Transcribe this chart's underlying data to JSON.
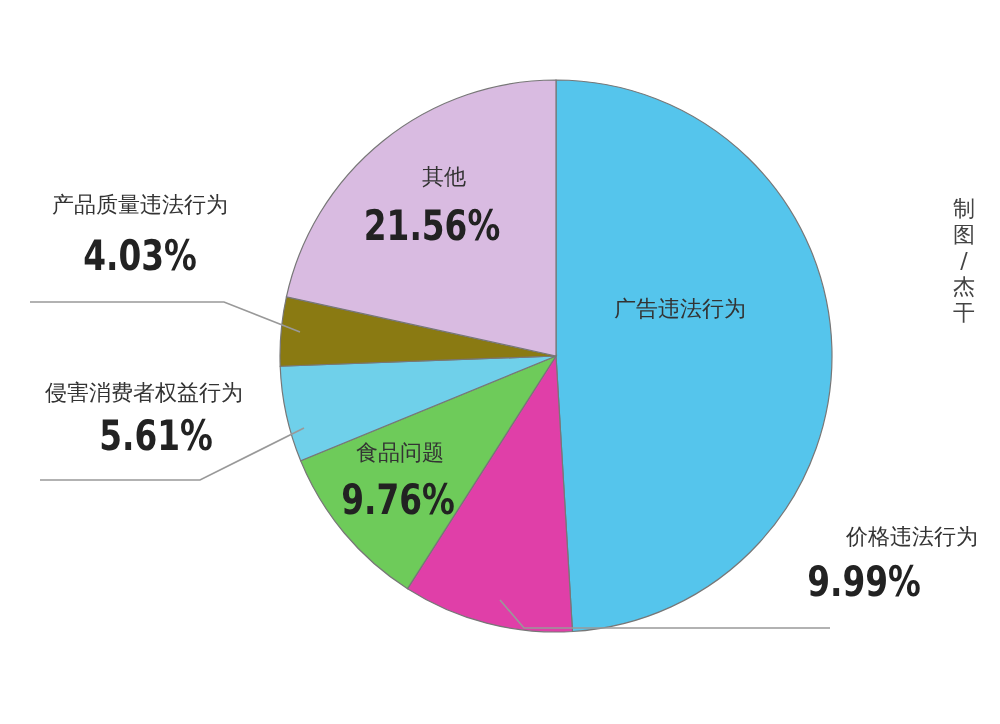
{
  "chart_data": {
    "type": "pie",
    "categories": [
      "广告违法行为",
      "价格违法行为",
      "食品问题",
      "侵害消费者权益行为",
      "产品质量违法行为",
      "其他"
    ],
    "values": [
      49.05,
      9.99,
      9.76,
      5.61,
      4.03,
      21.56
    ],
    "colors": [
      "#55c5ec",
      "#e03fa8",
      "#6ecb5a",
      "#6fd0ea",
      "#8a7a12",
      "#d9bbe1"
    ],
    "value_labels": [
      null,
      "9.99%",
      "9.76%",
      "5.61%",
      "4.03%",
      "21.56%"
    ],
    "annotations": [
      "制图/杰干"
    ]
  }
}
